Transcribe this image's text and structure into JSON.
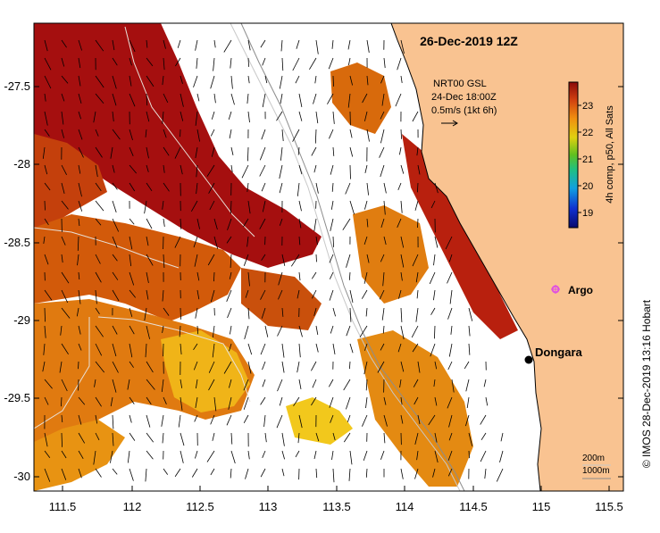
{
  "map": {
    "title": "26-Dec-2019 12Z",
    "credit": "© IMOS 28-Dec-2019 13:16 Hobart",
    "lon_ticks": [
      "111.5",
      "112",
      "112.5",
      "113",
      "113.5",
      "114",
      "114.5",
      "115",
      "115.5"
    ],
    "lat_ticks": [
      "-27.5",
      "-28",
      "-28.5",
      "-29",
      "-29.5",
      "-30"
    ]
  },
  "current_key": {
    "line1": "NRT00 GSL",
    "line2": "24-Dec 18:00Z",
    "line3": "0.5m/s (1kt 6h)"
  },
  "colorbar": {
    "label": "4h comp, p50, All Sats",
    "ticks": [
      "23",
      "22",
      "21",
      "20",
      "19"
    ]
  },
  "places": {
    "argo": "Argo",
    "dongara": "Dongara"
  },
  "isobaths": {
    "shallow": "200m",
    "deep": "1000m"
  },
  "colors": {
    "land": "#f9c391",
    "sst_hot": "#a50f0f",
    "sst_warm": "#cc4a08",
    "sst_mid": "#e8890c",
    "sst_cool": "#f0c010",
    "argo_marker": "#e050e0"
  }
}
